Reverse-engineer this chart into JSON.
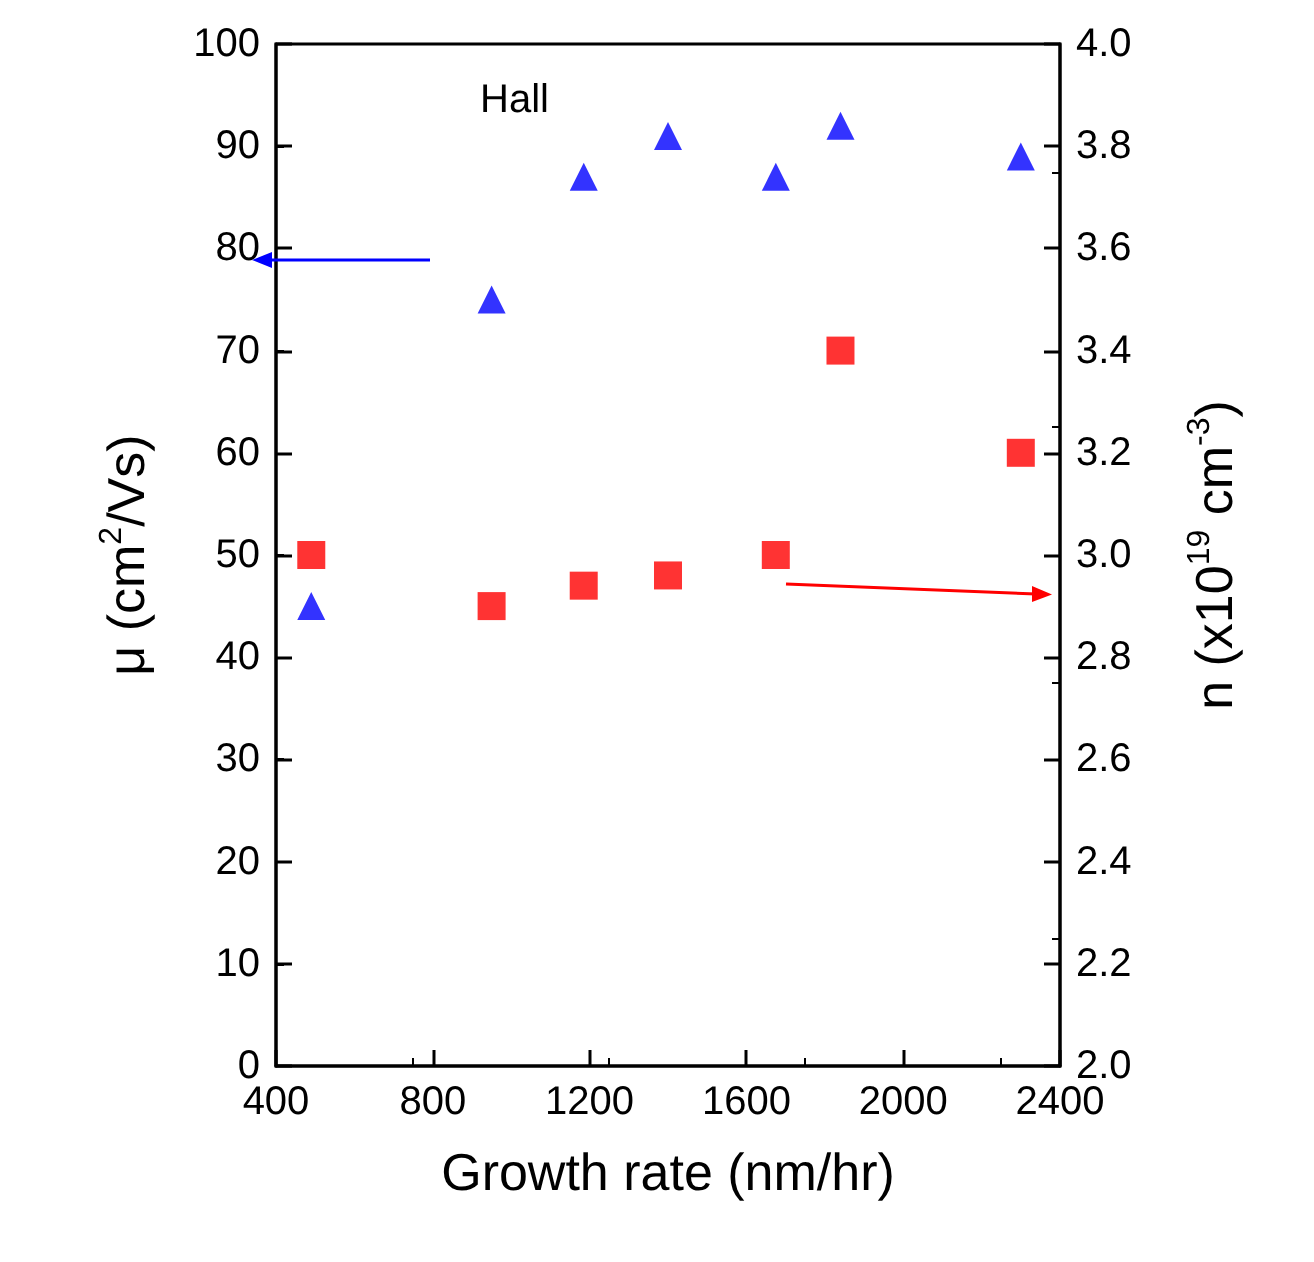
{
  "chart_data": {
    "type": "scatter",
    "xlabel": "Growth rate (nm/hr)",
    "ylabel": "μ (cm$^{2}$/Vs)",
    "y2label": "n (x10$^{19}$ cm$^{-3}$)",
    "annotations": [
      "Hall"
    ],
    "xlim": [
      400,
      2400
    ],
    "xticks": [
      400,
      800,
      1200,
      1600,
      2000,
      2400
    ],
    "ylim": [
      0,
      100
    ],
    "yticks": [
      0,
      10,
      20,
      30,
      40,
      50,
      60,
      70,
      80,
      90,
      100
    ],
    "y2lim": [
      2.0,
      4.0
    ],
    "y2ticks": [
      {
        "value": 2.0,
        "label": "2.0"
      },
      {
        "value": 2.2,
        "label": "2.2"
      },
      {
        "value": 2.4,
        "label": "2.4"
      },
      {
        "value": 2.6,
        "label": "2.6"
      },
      {
        "value": 2.8,
        "label": "2.8"
      },
      {
        "value": 3.0,
        "label": "3.0"
      },
      {
        "value": 3.2,
        "label": "3.2"
      },
      {
        "value": 3.4,
        "label": "3.4"
      },
      {
        "value": 3.6,
        "label": "3.6"
      },
      {
        "value": 3.8,
        "label": "3.8"
      },
      {
        "value": 4.0,
        "label": "4.0"
      }
    ],
    "grid": false,
    "series": [
      {
        "color": "#0000ff",
        "marker": "triangle",
        "x": [
          490,
          950,
          1185,
          1400,
          1675,
          1840,
          2300
        ],
        "values": [
          45,
          75,
          87,
          91,
          87,
          92,
          89
        ]
      },
      {
        "color": "#ff0000",
        "marker": "square",
        "axis": "y2",
        "x": [
          490,
          950,
          1185,
          1400,
          1675,
          1840,
          2300
        ],
        "values": [
          3.0,
          2.9,
          2.94,
          2.96,
          3.0,
          3.4,
          3.2
        ]
      }
    ]
  }
}
